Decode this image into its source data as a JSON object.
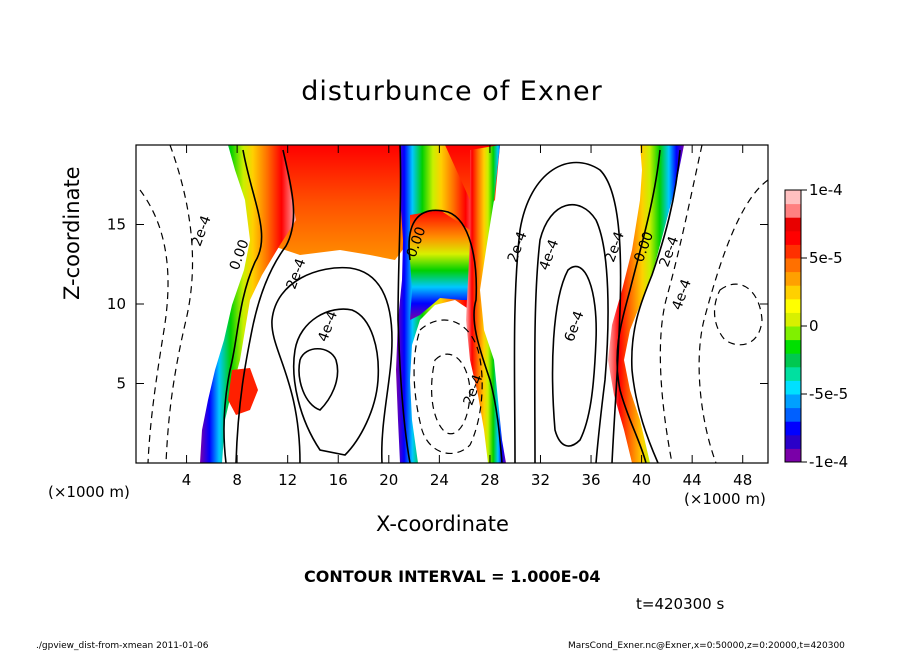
{
  "chart_data": {
    "type": "heatmap",
    "title": "disturbunce of Exner",
    "xlabel": "X-coordinate",
    "ylabel": "Z-coordinate",
    "x_unit": "(×1000 m)",
    "xlim": [
      0,
      50
    ],
    "ylim": [
      0,
      20
    ],
    "x_ticks": [
      "4",
      "8",
      "12",
      "16",
      "20",
      "24",
      "28",
      "32",
      "36",
      "40",
      "44",
      "48"
    ],
    "x_tick_values": [
      4,
      8,
      12,
      16,
      20,
      24,
      28,
      32,
      36,
      40,
      44,
      48
    ],
    "y_ticks": [
      "5",
      "10",
      "15"
    ],
    "y_tick_values": [
      5,
      10,
      15
    ],
    "colorbar": {
      "min": -0.0001,
      "max": 0.0001,
      "tick_labels": [
        "1e-4",
        "5e-5",
        "0",
        "-5e-5",
        "-1e-4"
      ],
      "tick_values": [
        0.0001,
        5e-05,
        0,
        -5e-05,
        -0.0001
      ],
      "colors": [
        "#7a00a8",
        "#2a00c8",
        "#0000ff",
        "#0060ff",
        "#00a0ff",
        "#00e0ff",
        "#00e0a0",
        "#00c850",
        "#00e000",
        "#80f000",
        "#d8f000",
        "#ffff00",
        "#ffd000",
        "#ffa000",
        "#ff7000",
        "#ff3000",
        "#ff0000",
        "#e80000",
        "#ff8080",
        "#ffc0c0"
      ]
    },
    "contour_labels": [
      {
        "text": "2e-4",
        "x": 5.5,
        "z": 14.5
      },
      {
        "text": "0.00",
        "x": 8.5,
        "z": 13.0
      },
      {
        "text": "2e-4",
        "x": 13.0,
        "z": 11.8
      },
      {
        "text": "4e-4",
        "x": 15.5,
        "z": 8.5
      },
      {
        "text": "0.00",
        "x": 22.5,
        "z": 13.8
      },
      {
        "text": "2e-4",
        "x": 27.0,
        "z": 4.5
      },
      {
        "text": "2e-4",
        "x": 30.5,
        "z": 13.5
      },
      {
        "text": "4e-4",
        "x": 33.0,
        "z": 13.0
      },
      {
        "text": "6e-4",
        "x": 35.0,
        "z": 8.5
      },
      {
        "text": "2e-4",
        "x": 38.2,
        "z": 13.5
      },
      {
        "text": "0.00",
        "x": 40.5,
        "z": 13.5
      },
      {
        "text": "2e-4",
        "x": 42.5,
        "z": 13.2
      },
      {
        "text": "4e-4",
        "x": 43.5,
        "z": 10.5
      }
    ]
  },
  "annotations": {
    "contour_interval": "CONTOUR INTERVAL = 1.000E-04",
    "time": "t=420300 s",
    "footer_left": "./gpview_dist-from-xmean  2011-01-06",
    "footer_right": "MarsCond_Exner.nc@Exner,x=0:50000,z=0:20000,t=420300"
  }
}
